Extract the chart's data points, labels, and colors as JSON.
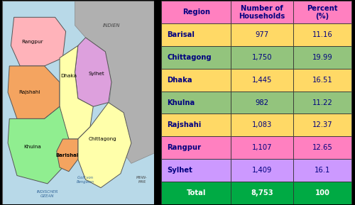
{
  "table": {
    "header": [
      "Region",
      "Number of\nHouseholds",
      "Percent\n(%)"
    ],
    "header_bg": "#FF80C0",
    "rows": [
      {
        "region": "Barisal",
        "households": "977",
        "percent": "11.16",
        "row_bg": "#FFD966",
        "num_bg": "#FFD966",
        "pct_bg": "#FFD966"
      },
      {
        "region": "Chittagong",
        "households": "1,750",
        "percent": "19.99",
        "row_bg": "#93C47D",
        "num_bg": "#93C47D",
        "pct_bg": "#93C47D"
      },
      {
        "region": "Dhaka",
        "households": "1,445",
        "percent": "16.51",
        "row_bg": "#FFD966",
        "num_bg": "#FFD966",
        "pct_bg": "#FFD966"
      },
      {
        "region": "Khulna",
        "households": "982",
        "percent": "11.22",
        "row_bg": "#93C47D",
        "num_bg": "#93C47D",
        "pct_bg": "#93C47D"
      },
      {
        "region": "Rajshahi",
        "households": "1,083",
        "percent": "12.37",
        "row_bg": "#FFD966",
        "num_bg": "#FFD966",
        "pct_bg": "#FFD966"
      },
      {
        "region": "Rangpur",
        "households": "1,107",
        "percent": "12.65",
        "row_bg": "#FF80C0",
        "num_bg": "#FF80C0",
        "pct_bg": "#FF80C0"
      },
      {
        "region": "Sylhet",
        "households": "1,409",
        "percent": "16.1",
        "row_bg": "#CC99FF",
        "num_bg": "#CC99FF",
        "pct_bg": "#CC99FF"
      }
    ],
    "total_row": {
      "region": "Total",
      "households": "8,753",
      "percent": "100",
      "bg": "#00AA44"
    },
    "text_color": "#000080",
    "border_color": "#333333"
  },
  "map": {
    "outer_border": "#000000",
    "sea_color": "#B8D9E8",
    "india_color": "#B0B0B0",
    "rangpur_color": "#FFB3BA",
    "rajshahi_color": "#F4A460",
    "dhaka_color": "#FFFFAA",
    "sylhet_color": "#DDA0DD",
    "khulna_color": "#90EE90",
    "chittagong_color": "#FFFFAA",
    "barishal_color": "#F4A460",
    "label_color": "#000000",
    "label_bold": false
  },
  "figure_bg": "#000000"
}
